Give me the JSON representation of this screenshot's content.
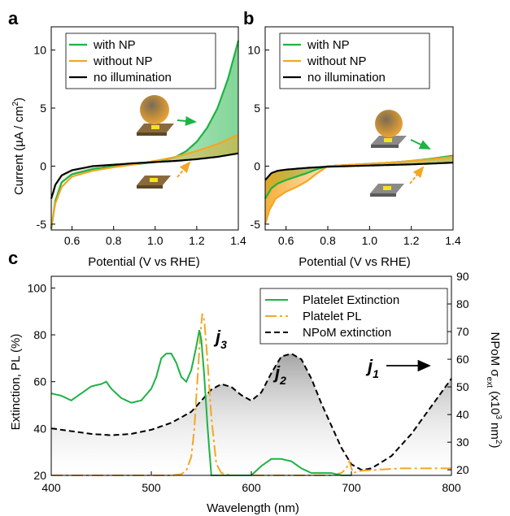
{
  "panels": {
    "a": {
      "letter": "a",
      "ylabel_main": "Current (",
      "ylabel_unit": "µA / cm",
      "ylabel_sup": "2",
      "ylabel_close": ")",
      "xlabel": "Potential (V vs RHE)",
      "legend": [
        "with NP",
        "without NP",
        "no illumination"
      ]
    },
    "b": {
      "letter": "b",
      "xlabel": "Potential (V vs RHE)",
      "legend": [
        "with NP",
        "without NP",
        "no illumination"
      ]
    },
    "c": {
      "letter": "c",
      "ylabel_left": "Extinction, PL (%)",
      "ylabel_right_main": "NPoM σ",
      "ylabel_right_sub": "ext",
      "ylabel_right_unit": " (x10",
      "ylabel_right_exp": "3",
      "ylabel_right_nm": " nm",
      "ylabel_right_exp2": "2",
      "ylabel_right_close": ")",
      "xlabel": "Wavelength (nm)",
      "legend": [
        "Platelet Extinction",
        "Platelet PL",
        "NPoM extinction"
      ],
      "annotations": [
        {
          "main": "j",
          "sub": "3"
        },
        {
          "main": "j",
          "sub": "2"
        },
        {
          "main": "j",
          "sub": "1"
        }
      ]
    }
  },
  "colors": {
    "with_np": "#1db344",
    "without_np": "#f5a623",
    "no_illumination": "#000000",
    "npom": "#000000"
  },
  "chart_data": [
    {
      "type": "line",
      "panel": "a",
      "xlabel": "Potential (V vs RHE)",
      "ylabel": "Current (µA / cm2)",
      "xlim": [
        0.5,
        1.4
      ],
      "ylim": [
        -5.5,
        12
      ],
      "xticks": [
        0.6,
        0.8,
        1.0,
        1.2,
        1.4
      ],
      "yticks": [
        -5,
        0,
        5,
        10
      ],
      "series": [
        {
          "name": "with NP",
          "x": [
            0.5,
            0.52,
            0.55,
            0.6,
            0.7,
            0.8,
            0.9,
            1.0,
            1.1,
            1.15,
            1.2,
            1.25,
            1.3,
            1.35,
            1.4
          ],
          "y": [
            -5.4,
            -3.0,
            -1.4,
            -0.7,
            -0.25,
            0.0,
            0.15,
            0.35,
            0.8,
            1.3,
            2.1,
            3.3,
            5.0,
            7.5,
            10.8
          ]
        },
        {
          "name": "without NP",
          "x": [
            0.5,
            0.52,
            0.55,
            0.6,
            0.7,
            0.8,
            0.9,
            1.0,
            1.1,
            1.2,
            1.3,
            1.4
          ],
          "y": [
            -5.2,
            -3.2,
            -1.8,
            -0.9,
            -0.4,
            -0.1,
            0.15,
            0.45,
            0.8,
            1.3,
            1.9,
            2.7
          ]
        },
        {
          "name": "no illumination",
          "x": [
            0.5,
            0.52,
            0.55,
            0.6,
            0.7,
            0.8,
            0.9,
            1.0,
            1.1,
            1.2,
            1.3,
            1.4
          ],
          "y": [
            -2.8,
            -1.6,
            -0.8,
            -0.35,
            0.0,
            0.12,
            0.25,
            0.35,
            0.45,
            0.6,
            0.8,
            1.1
          ]
        }
      ]
    },
    {
      "type": "line",
      "panel": "b",
      "xlabel": "Potential (V vs RHE)",
      "xlim": [
        0.5,
        1.4
      ],
      "ylim": [
        -5.5,
        12
      ],
      "xticks": [
        0.6,
        0.8,
        1.0,
        1.2,
        1.4
      ],
      "yticks": [
        -5,
        0,
        5,
        10
      ],
      "series": [
        {
          "name": "with NP",
          "x": [
            0.5,
            0.53,
            0.56,
            0.6,
            0.65,
            0.7,
            0.75,
            0.8,
            0.9,
            1.0,
            1.1,
            1.2,
            1.3,
            1.4
          ],
          "y": [
            -2.8,
            -1.9,
            -1.5,
            -1.2,
            -0.9,
            -0.6,
            -0.25,
            0.0,
            0.1,
            0.2,
            0.3,
            0.45,
            0.65,
            0.9
          ]
        },
        {
          "name": "without NP",
          "x": [
            0.5,
            0.52,
            0.55,
            0.6,
            0.65,
            0.7,
            0.75,
            0.8,
            0.9,
            1.0,
            1.1,
            1.2,
            1.3,
            1.4
          ],
          "y": [
            -5.0,
            -3.8,
            -2.8,
            -2.2,
            -1.8,
            -1.3,
            -0.6,
            0.0,
            0.1,
            0.2,
            0.3,
            0.45,
            0.6,
            0.8
          ]
        },
        {
          "name": "no illumination",
          "x": [
            0.5,
            0.53,
            0.56,
            0.6,
            0.7,
            0.8,
            0.9,
            1.0,
            1.1,
            1.2,
            1.3,
            1.4
          ],
          "y": [
            -1.2,
            -0.6,
            -0.4,
            -0.3,
            -0.15,
            -0.05,
            0.0,
            0.05,
            0.1,
            0.15,
            0.22,
            0.3
          ]
        }
      ]
    },
    {
      "type": "line",
      "panel": "c",
      "xlabel": "Wavelength (nm)",
      "ylabel": "Extinction, PL (%)",
      "xlim": [
        400,
        800
      ],
      "ylim": [
        20,
        105
      ],
      "y2lim": [
        18,
        90
      ],
      "xticks": [
        400,
        500,
        600,
        700,
        800
      ],
      "yticks": [
        20,
        40,
        60,
        80,
        100
      ],
      "y2ticks": [
        20,
        30,
        40,
        50,
        60,
        70,
        80,
        90
      ],
      "series": [
        {
          "name": "Platelet Extinction",
          "axis": "left",
          "x": [
            400,
            410,
            420,
            430,
            440,
            450,
            455,
            460,
            470,
            480,
            490,
            500,
            505,
            510,
            515,
            520,
            525,
            530,
            535,
            540,
            545,
            548,
            550,
            553,
            556,
            560,
            570,
            580,
            590,
            600,
            610,
            620,
            630,
            640,
            650,
            660,
            670,
            680,
            690,
            700
          ],
          "y": [
            55,
            54,
            52,
            55,
            58,
            59,
            60,
            57,
            53,
            51,
            52,
            57,
            62,
            70,
            72,
            72,
            68,
            62,
            60,
            65,
            75,
            82,
            78,
            62,
            42,
            20,
            20,
            20,
            20,
            20,
            24,
            27,
            27,
            26,
            23,
            21,
            21,
            21,
            20,
            20
          ]
        },
        {
          "name": "Platelet PL",
          "axis": "left",
          "x": [
            400,
            450,
            500,
            520,
            530,
            535,
            540,
            543,
            546,
            549,
            551,
            553,
            556,
            560,
            565,
            570,
            580,
            600,
            650,
            680,
            690,
            695,
            698,
            700,
            702,
            705,
            710,
            750,
            800
          ],
          "y": [
            20,
            20,
            20,
            20,
            20.5,
            22,
            28,
            40,
            60,
            80,
            89,
            86,
            70,
            45,
            25,
            21,
            20,
            20,
            20,
            20,
            21,
            23,
            26,
            23,
            21,
            21.5,
            22,
            23,
            23
          ]
        },
        {
          "name": "NPoM extinction",
          "axis": "right",
          "x": [
            400,
            420,
            440,
            460,
            480,
            500,
            520,
            540,
            550,
            560,
            570,
            580,
            590,
            600,
            610,
            620,
            630,
            640,
            650,
            660,
            670,
            680,
            690,
            700,
            710,
            720,
            740,
            760,
            780,
            800
          ],
          "y": [
            35,
            34,
            33,
            32.5,
            33,
            34.5,
            37,
            41,
            45,
            49,
            51,
            50,
            47,
            45,
            48,
            55,
            61,
            62,
            60,
            53,
            44,
            36,
            28,
            22,
            20,
            20.5,
            25,
            33,
            43,
            53
          ]
        }
      ]
    }
  ]
}
